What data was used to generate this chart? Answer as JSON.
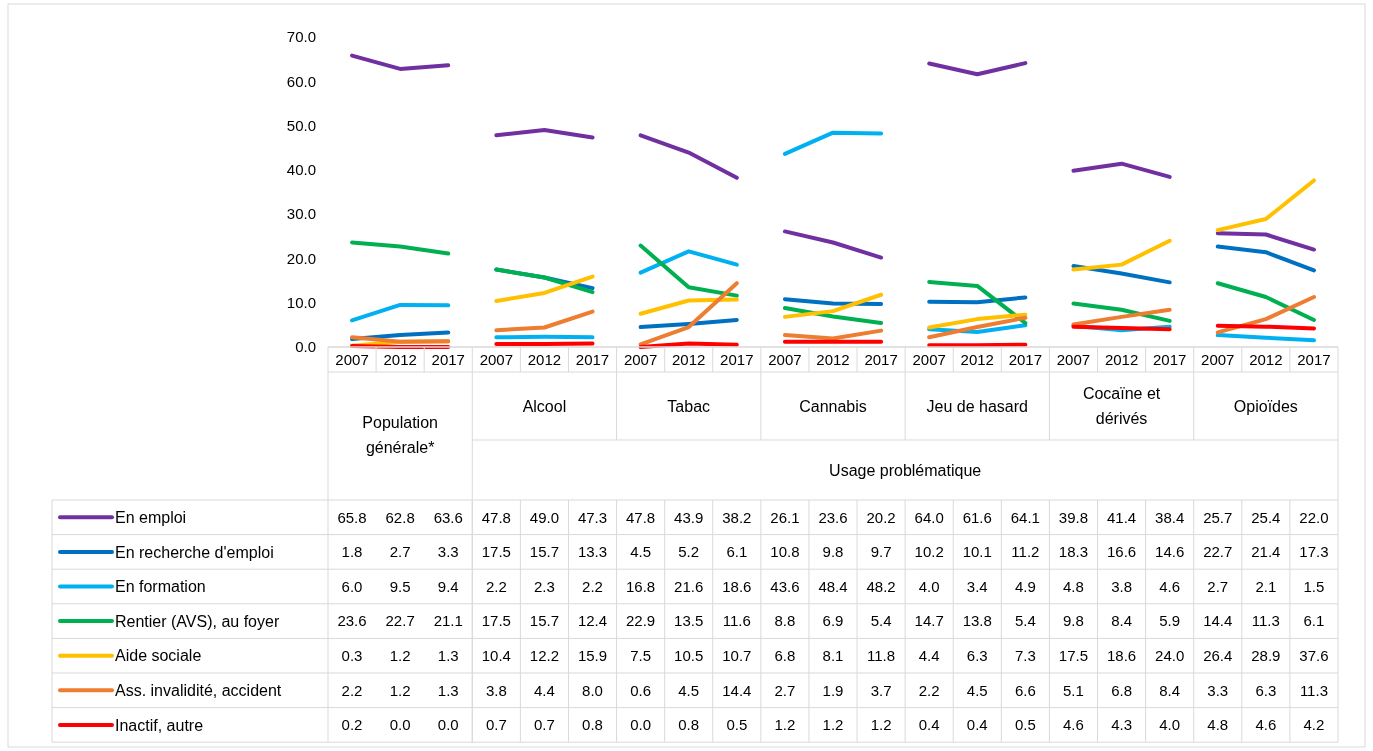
{
  "chart_data": {
    "type": "line",
    "categories": [
      "2007",
      "2012",
      "2017",
      "2007",
      "2012",
      "2017",
      "2007",
      "2012",
      "2017",
      "2007",
      "2012",
      "2017",
      "2007",
      "2012",
      "2017",
      "2007",
      "2012",
      "2017",
      "2007",
      "2012",
      "2017"
    ],
    "annotations": [
      "Population générale*",
      "Alcool",
      "Tabac",
      "Cannabis",
      "Jeu de hasard",
      "Cocaïne et dérivés",
      "Opioïdes",
      "Usage problématique"
    ],
    "ylim": [
      0,
      70
    ],
    "yticks": [
      {
        "value": 0,
        "label": "0.0"
      },
      {
        "value": 10,
        "label": "10.0"
      },
      {
        "value": 20,
        "label": "20.0"
      },
      {
        "value": 30,
        "label": "30.0"
      },
      {
        "value": 40,
        "label": "40.0"
      },
      {
        "value": 50,
        "label": "50.0"
      },
      {
        "value": 60,
        "label": "60.0"
      },
      {
        "value": 70,
        "label": "70.0"
      }
    ],
    "grid": false,
    "legend": "bottom",
    "marker": "none",
    "line_style": "solid",
    "series": [
      {
        "name": "En emploi",
        "color": "#7030a0",
        "values": [
          65.8,
          62.8,
          63.6,
          47.8,
          49.0,
          47.3,
          47.8,
          43.9,
          38.2,
          26.1,
          23.6,
          20.2,
          64.0,
          61.6,
          64.1,
          39.8,
          41.4,
          38.4,
          25.7,
          25.4,
          22.0
        ],
        "value_labels": [
          "65.8",
          "62.8",
          "63.6",
          "47.8",
          "49.0",
          "47.3",
          "47.8",
          "43.9",
          "38.2",
          "26.1",
          "23.6",
          "20.2",
          "64.0",
          "61.6",
          "64.1",
          "39.8",
          "41.4",
          "38.4",
          "25.7",
          "25.4",
          "22.0"
        ]
      },
      {
        "name": "En recherche d'emploi",
        "color": "#0070c0",
        "values": [
          1.8,
          2.7,
          3.3,
          17.5,
          15.7,
          13.3,
          4.5,
          5.2,
          6.1,
          10.8,
          9.8,
          9.7,
          10.2,
          10.1,
          11.2,
          18.3,
          16.6,
          14.6,
          22.7,
          21.4,
          17.3
        ],
        "value_labels": [
          "1.8",
          "2.7",
          "3.3",
          "17.5",
          "15.7",
          "13.3",
          "4.5",
          "5.2",
          "6.1",
          "10.8",
          "9.8",
          "9.7",
          "10.2",
          "10.1",
          "11.2",
          "18.3",
          "16.6",
          "14.6",
          "22.7",
          "21.4",
          "17.3"
        ]
      },
      {
        "name": "En formation",
        "color": "#00b0f0",
        "values": [
          6.0,
          9.5,
          9.4,
          2.2,
          2.3,
          2.2,
          16.8,
          21.6,
          18.6,
          43.6,
          48.4,
          48.2,
          4.0,
          3.4,
          4.9,
          4.8,
          3.8,
          4.6,
          2.7,
          2.1,
          1.5
        ],
        "value_labels": [
          "6.0",
          "9.5",
          "9.4",
          "2.2",
          "2.3",
          "2.2",
          "16.8",
          "21.6",
          "18.6",
          "43.6",
          "48.4",
          "48.2",
          "4.0",
          "3.4",
          "4.9",
          "4.8",
          "3.8",
          "4.6",
          "2.7",
          "2.1",
          "1.5"
        ]
      },
      {
        "name": "Rentier (AVS), au foyer",
        "color": "#00b050",
        "values": [
          23.6,
          22.7,
          21.1,
          17.5,
          15.7,
          12.4,
          22.9,
          13.5,
          11.6,
          8.8,
          6.9,
          5.4,
          14.7,
          13.8,
          5.4,
          9.8,
          8.4,
          5.9,
          14.4,
          11.3,
          6.1
        ],
        "value_labels": [
          "23.6",
          "22.7",
          "21.1",
          "17.5",
          "15.7",
          "12.4",
          "22.9",
          "13.5",
          "11.6",
          "8.8",
          "6.9",
          "5.4",
          "14.7",
          "13.8",
          "5.4",
          "9.8",
          "8.4",
          "5.9",
          "14.4",
          "11.3",
          "6.1"
        ]
      },
      {
        "name": "Aide sociale",
        "color": "#ffc000",
        "values": [
          0.3,
          1.2,
          1.3,
          10.4,
          12.2,
          15.9,
          7.5,
          10.5,
          10.7,
          6.8,
          8.1,
          11.8,
          4.4,
          6.3,
          7.3,
          17.5,
          18.6,
          24.0,
          26.4,
          28.9,
          37.6
        ],
        "value_labels": [
          "0.3",
          "1.2",
          "1.3",
          "10.4",
          "12.2",
          "15.9",
          "7.5",
          "10.5",
          "10.7",
          "6.8",
          "8.1",
          "11.8",
          "4.4",
          "6.3",
          "7.3",
          "17.5",
          "18.6",
          "24.0",
          "26.4",
          "28.9",
          "37.6"
        ]
      },
      {
        "name": "Ass. invalidité, accident",
        "color": "#ed7d31",
        "values": [
          2.2,
          1.2,
          1.3,
          3.8,
          4.4,
          8.0,
          0.6,
          4.5,
          14.4,
          2.7,
          1.9,
          3.7,
          2.2,
          4.5,
          6.6,
          5.1,
          6.8,
          8.4,
          3.3,
          6.3,
          11.3
        ],
        "value_labels": [
          "2.2",
          "1.2",
          "1.3",
          "3.8",
          "4.4",
          "8.0",
          "0.6",
          "4.5",
          "14.4",
          "2.7",
          "1.9",
          "3.7",
          "2.2",
          "4.5",
          "6.6",
          "5.1",
          "6.8",
          "8.4",
          "3.3",
          "6.3",
          "11.3"
        ]
      },
      {
        "name": "Inactif, autre",
        "color": "#ff0000",
        "values": [
          0.2,
          0.0,
          0.0,
          0.7,
          0.7,
          0.8,
          0.0,
          0.8,
          0.5,
          1.2,
          1.2,
          1.2,
          0.4,
          0.4,
          0.5,
          4.6,
          4.3,
          4.0,
          4.8,
          4.6,
          4.2
        ],
        "value_labels": [
          "0.2",
          "0.0",
          "0.0",
          "0.7",
          "0.7",
          "0.8",
          "0.0",
          "0.8",
          "0.5",
          "1.2",
          "1.2",
          "1.2",
          "0.4",
          "0.4",
          "0.5",
          "4.6",
          "4.3",
          "4.0",
          "4.8",
          "4.6",
          "4.2"
        ]
      }
    ]
  }
}
